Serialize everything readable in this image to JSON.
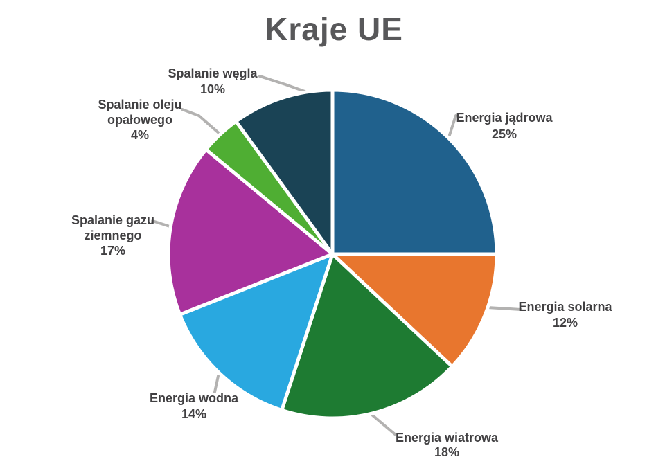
{
  "chart_data": {
    "type": "pie",
    "title": "Kraje UE",
    "direction": "clockwise",
    "start_angle_deg": -90,
    "legend_position": "none",
    "labels_outside": true,
    "colors": {
      "title_color": "#58585a",
      "label_color": "#414042",
      "leader_line_color": "#b3b2b1",
      "slice_separator_color": "#ffffff"
    },
    "slices": [
      {
        "label": "Energia jądrowa",
        "label_lines": [
          "Energia jądrowa"
        ],
        "pct": "25%",
        "value": 25,
        "color": "#20618d"
      },
      {
        "label": "Energia solarna",
        "label_lines": [
          "Energia solarna"
        ],
        "pct": "12%",
        "value": 12,
        "color": "#e8762e"
      },
      {
        "label": "Energia wiatrowa",
        "label_lines": [
          "Energia wiatrowa"
        ],
        "pct": "18%",
        "value": 18,
        "color": "#1e7b32"
      },
      {
        "label": "Energia wodna",
        "label_lines": [
          "Energia wodna"
        ],
        "pct": "14%",
        "value": 14,
        "color": "#29a8e0"
      },
      {
        "label": "Spalanie gazu ziemnego",
        "label_lines": [
          "Spalanie gazu",
          "ziemnego"
        ],
        "pct": "17%",
        "value": 17,
        "color": "#a8319c"
      },
      {
        "label": "Spalanie oleju opałowego",
        "label_lines": [
          "Spalanie oleju",
          "opałowego"
        ],
        "pct": "4%",
        "value": 4,
        "color": "#4fae33"
      },
      {
        "label": "Spalanie węgla",
        "label_lines": [
          "Spalanie węgla"
        ],
        "pct": "10%",
        "value": 10,
        "color": "#1a4355"
      }
    ]
  }
}
